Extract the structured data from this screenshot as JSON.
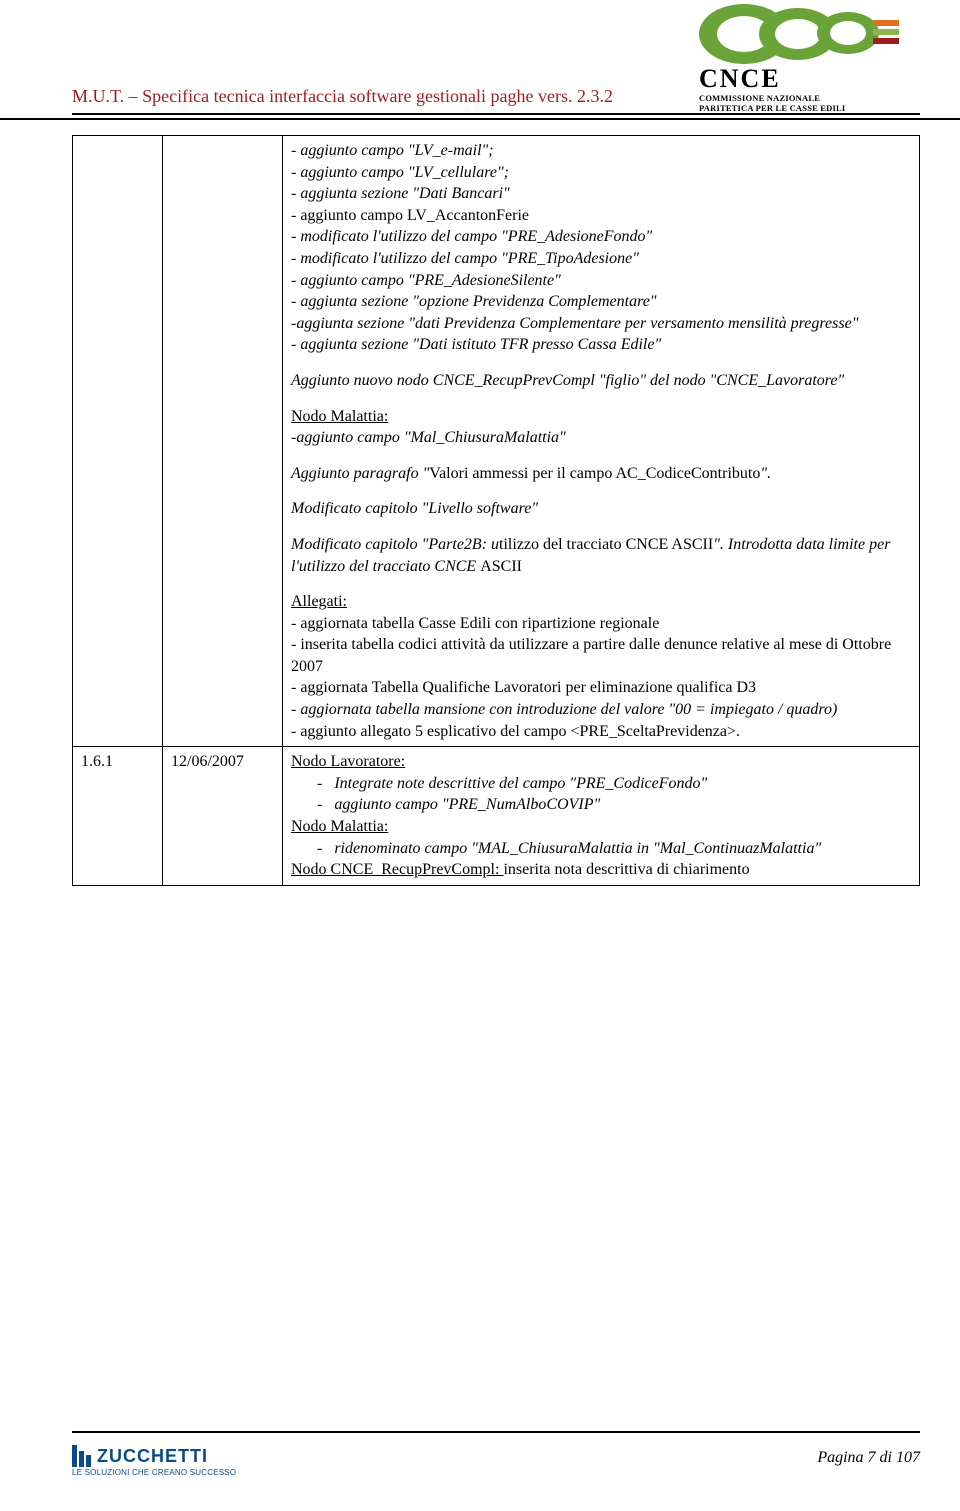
{
  "header": {
    "title": "M.U.T. – Specifica tecnica interfaccia software gestionali paghe vers. 2.3.2",
    "logo_text": "CNCE",
    "logo_sub1": "COMMISSIONE NAZIONALE",
    "logo_sub2": "PARITETICA PER LE CASSE EDILI",
    "title_color": "#9c1c1f",
    "logo_green": "#6aa438"
  },
  "body": {
    "row1": {
      "blocks": [
        {
          "cls": "italic",
          "text": "- aggiunto campo \"LV_e-mail\";"
        },
        {
          "cls": "italic",
          "text": "- aggiunto campo \"LV_cellulare\";"
        },
        {
          "cls": "italic",
          "text": "- aggiunta sezione \"Dati Bancari\""
        },
        {
          "cls": "",
          "text": "- aggiunto campo LV_AccantonFerie"
        },
        {
          "cls": "italic",
          "text": "- modificato l'utilizzo del campo \"PRE_AdesioneFondo\""
        },
        {
          "cls": "italic",
          "text": "- modificato l'utilizzo del campo \"PRE_TipoAdesione\""
        },
        {
          "cls": "italic",
          "text": "- aggiunto campo \"PRE_AdesioneSilente\""
        },
        {
          "cls": "italic",
          "text": "- aggiunta sezione \"opzione Previdenza Complementare\""
        },
        {
          "cls": "italic",
          "text": "-aggiunta sezione \"dati Previdenza Complementare per versamento mensilità pregresse\""
        },
        {
          "cls": "italic",
          "text": "- aggiunta sezione \"Dati istituto TFR presso Cassa Edile\""
        }
      ],
      "p2": "Aggiunto nuovo  nodo CNCE_RecupPrevCompl \"figlio\" del nodo \"CNCE_Lavoratore\"",
      "p3a": "Nodo Malattia:",
      "p3b": "-aggiunto campo \"Mal_ChiusuraMalattia\"",
      "p4a": "Aggiunto paragrafo \"",
      "p4b": "Valori ammessi per il campo AC_CodiceContributo",
      "p4c": "\".",
      "p5": "Modificato capitolo \"Livello software\"",
      "p6a": "Modificato capitolo \"Parte2B: u",
      "p6b": "tilizzo del tracciato CNCE ASCII",
      "p6c": "\". Introdotta data limite per l'utilizzo del tracciato CNCE ",
      "p6d": "ASCII",
      "p7_head": "Allegati:",
      "p7_items": [
        "- aggiornata tabella Casse Edili con ripartizione regionale",
        "- inserita tabella codici attività da utilizzare a partire dalle denunce relative al mese di Ottobre 2007",
        "- aggiornata Tabella Qualifiche Lavoratori per eliminazione qualifica D3"
      ],
      "p7_it": "- aggiornata tabella mansione con introduzione del valore \"00 = impiegato / quadro)",
      "p7_tail": "- aggiunto allegato 5 esplicativo del campo <PRE_SceltaPrevidenza>."
    },
    "row2": {
      "version": "1.6.1",
      "date": "12/06/2007",
      "l1": "Nodo Lavoratore:",
      "b1a": "Integrate note descrittive del campo \"PRE_CodiceFondo\"",
      "b1b": "aggiunto campo \"PRE_NumAlboCOVIP\"",
      "l2": "Nodo Malattia:",
      "b2": "ridenominato campo \"MAL_ChiusuraMalattia in \"Mal_ContinuazMalattia\"",
      "l3a": "Nodo CNCE_RecupPrevCompl:  ",
      "l3b": "inserita nota descrittiva di chiarimento"
    }
  },
  "footer": {
    "brand": "ZUCCHETTI",
    "tagline": "LE SOLUZIONI CHE CREANO SUCCESSO",
    "page": "Pagina 7 di 107",
    "brand_color": "#0a4a8a"
  }
}
